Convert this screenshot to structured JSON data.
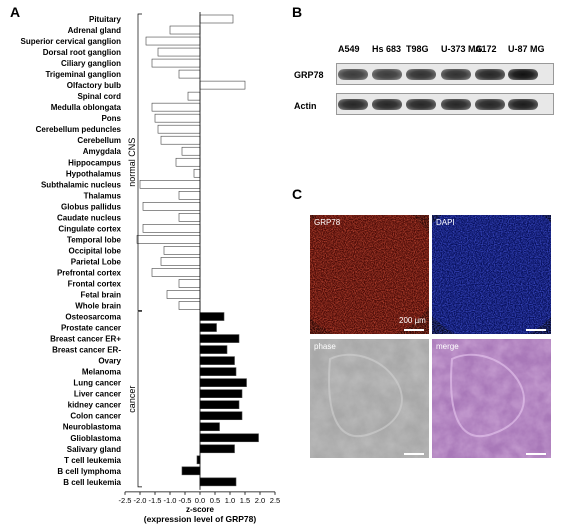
{
  "panels": {
    "a": "A",
    "b": "B",
    "c": "C"
  },
  "chart_data": {
    "type": "bar",
    "orientation": "horizontal",
    "categories": [
      "Pituitary",
      "Adrenal gland",
      "Superior cervical ganglion",
      "Dorsal root ganglion",
      "Ciliary ganglion",
      "Trigeminal ganglion",
      "Olfactory bulb",
      "Spinal cord",
      "Medulla oblongata",
      "Pons",
      "Cerebellum peduncles",
      "Cerebellum",
      "Amygdala",
      "Hippocampus",
      "Hypothalamus",
      "Subthalamic nucleus",
      "Thalamus",
      "Globus pallidus",
      "Caudate nucleus",
      "Cingulate cortex",
      "Temporal lobe",
      "Occipital lobe",
      "Parietal Lobe",
      "Prefrontal cortex",
      "Frontal cortex",
      "Fetal brain",
      "Whole brain",
      "Osteosarcoma",
      "Prostate cancer",
      "Breast cancer ER+",
      "Breast cancer ER-",
      "Ovary",
      "Melanoma",
      "Lung cancer",
      "Liver cancer",
      "kidney cancer",
      "Colon cancer",
      "Neuroblastoma",
      "Glioblastoma",
      "Salivary gland",
      "T cell leukemia",
      "B cell lymphoma",
      "B cell leukemia"
    ],
    "values": [
      1.1,
      -1.0,
      -1.8,
      -1.4,
      -1.6,
      -0.7,
      1.5,
      -0.4,
      -1.6,
      -1.5,
      -1.4,
      -1.3,
      -0.6,
      -0.8,
      -0.2,
      -2.0,
      -0.7,
      -1.9,
      -0.7,
      -1.9,
      -2.1,
      -1.2,
      -1.3,
      -1.6,
      -0.7,
      -1.1,
      -0.7,
      0.8,
      0.55,
      1.3,
      0.9,
      1.15,
      1.2,
      1.55,
      1.4,
      1.3,
      1.4,
      0.65,
      1.95,
      1.15,
      -0.1,
      -0.6,
      1.2
    ],
    "group_assignment": [
      "normal CNS x27",
      "cancer x16"
    ],
    "groups": [
      {
        "name": "normal CNS",
        "start": 0,
        "end": 26,
        "color": "#ffffff"
      },
      {
        "name": "cancer",
        "start": 27,
        "end": 42,
        "color": "#000000"
      }
    ],
    "x_ticks": [
      "-2.5",
      "-2.0",
      "-1.5",
      "-1.0",
      "-0.5",
      "0.0",
      "0.5",
      "1.0",
      "1.5",
      "2.0",
      "2.5"
    ],
    "xlim": [
      -2.5,
      2.5
    ],
    "xlabel": "z-score",
    "xlabel2": "(expression level of GRP78)",
    "grid": false
  },
  "western_blot": {
    "cell_lines": [
      "A549",
      "Hs 683",
      "T98G",
      "U-373 MG",
      "A172",
      "U-87 MG"
    ],
    "bands": [
      "GRP78",
      "Actin"
    ],
    "grp78_intensity": [
      0.8,
      0.8,
      0.85,
      0.85,
      0.9,
      1.0
    ],
    "actin_intensity": [
      0.9,
      0.9,
      0.9,
      0.9,
      0.9,
      0.95
    ]
  },
  "micrographs": [
    {
      "label": "GRP78",
      "color": "#b01810"
    },
    {
      "label": "DAPI",
      "color": "#1a2ad0"
    },
    {
      "label": "phase",
      "color": "#9c9c9c"
    },
    {
      "label": "merge",
      "color": "#c080c8"
    }
  ],
  "scale_bar_label": "200 µm"
}
